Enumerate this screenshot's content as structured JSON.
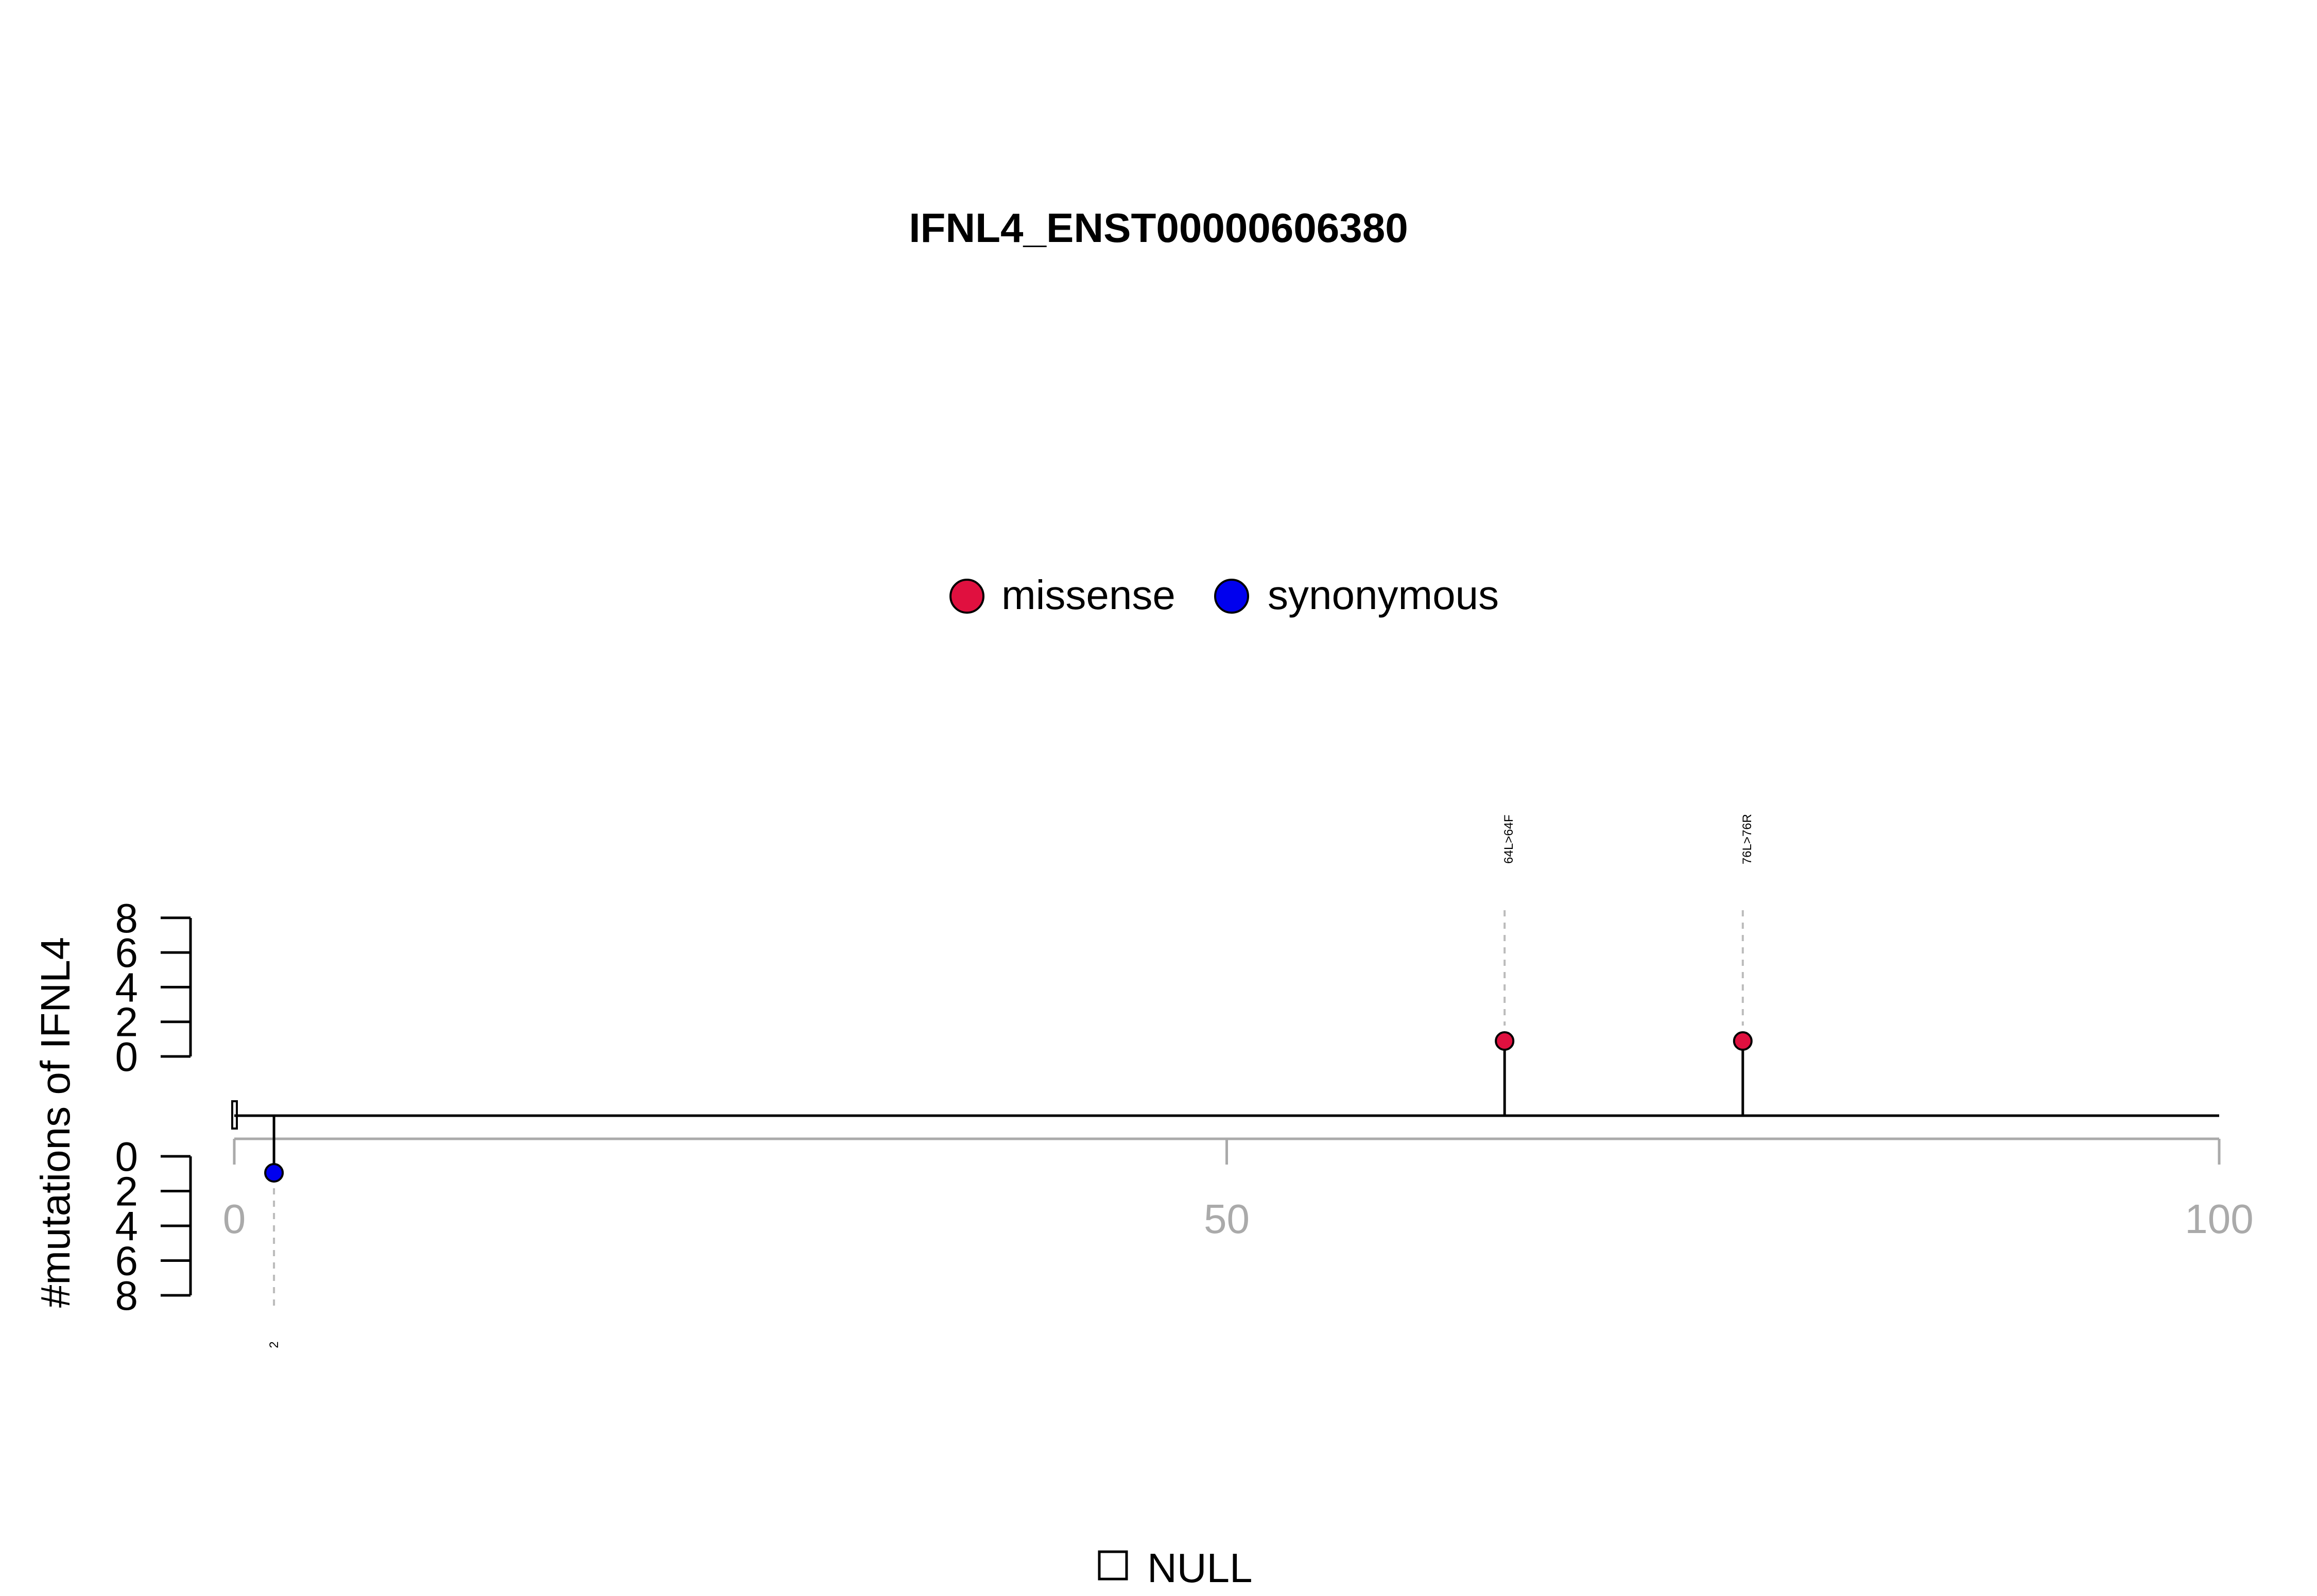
{
  "chart_data": {
    "type": "lollipop",
    "title": "IFNL4_ENST00000606380",
    "ylabel": "#mutations of IFNL4",
    "xlim": [
      0,
      100
    ],
    "x_ticks": [
      "0",
      "50",
      "100"
    ],
    "y_ticks_top": [
      "0",
      "2",
      "4",
      "6",
      "8"
    ],
    "y_ticks_bottom": [
      "0",
      "2",
      "4",
      "6",
      "8"
    ],
    "legend": [
      {
        "name": "missense",
        "color": "#e0103f"
      },
      {
        "name": "synonymous",
        "color": "#0000ee"
      }
    ],
    "domain_legend": "NULL",
    "mutations": [
      {
        "position": 64,
        "count": 1,
        "type": "missense",
        "label": "64L>64F",
        "side": "top"
      },
      {
        "position": 76,
        "count": 1,
        "type": "missense",
        "label": "76L>76R",
        "side": "top"
      },
      {
        "position": 2,
        "count": 1,
        "type": "synonymous",
        "label": "2",
        "side": "bottom"
      }
    ]
  }
}
